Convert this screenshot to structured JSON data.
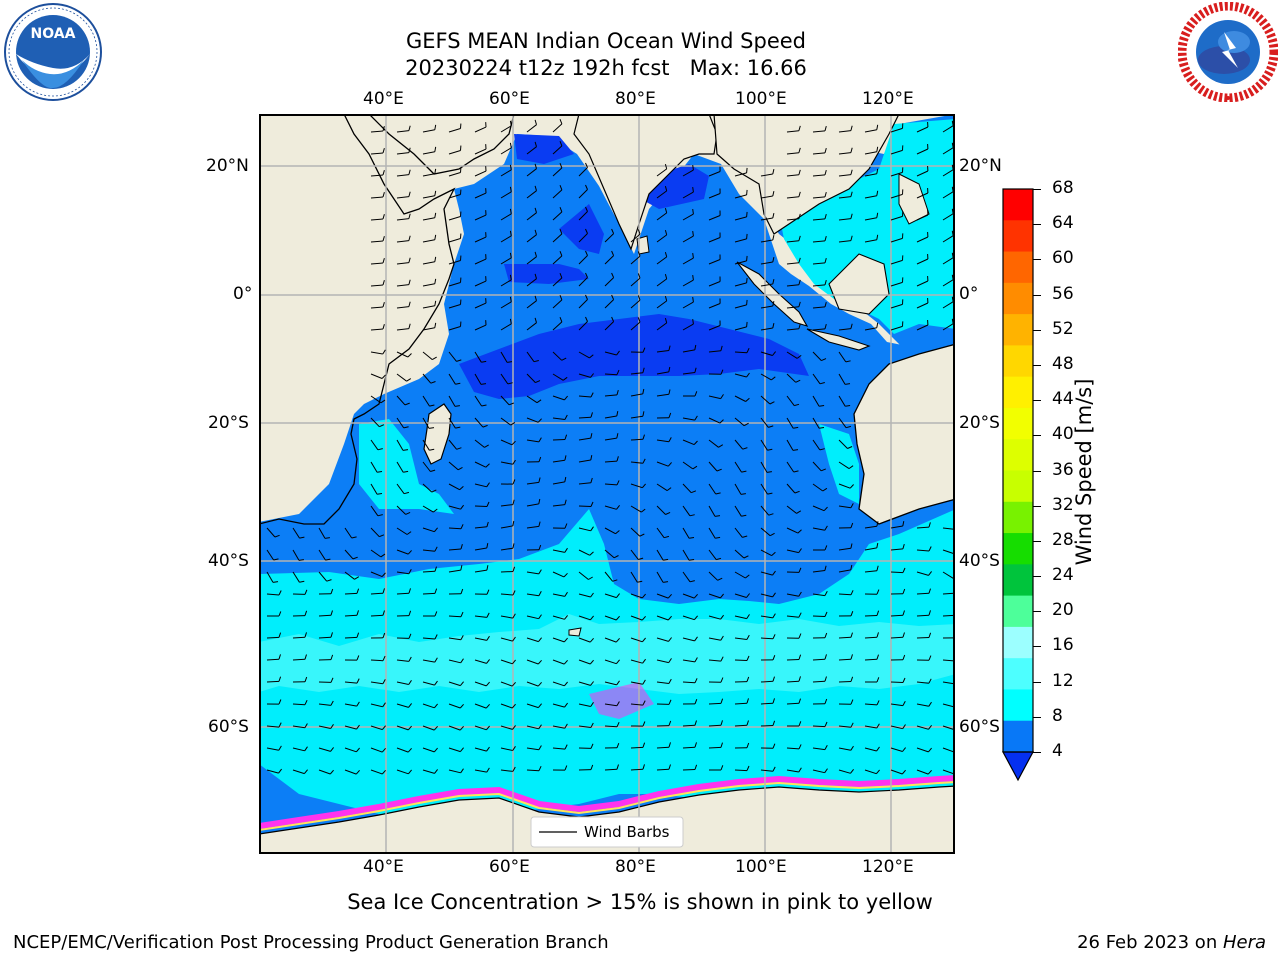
{
  "title": {
    "line1": "GEFS MEAN Indian Ocean Wind Speed",
    "line2": "20230224 t12z 192h fcst   Max: 16.66"
  },
  "logos": {
    "noaa_text": "NOAA",
    "noaa_ring": "NATIONAL OCEANIC AND ATMOSPHERIC ADMINISTRATION · U.S. DEPARTMENT OF COMMERCE",
    "nws_ring": "NATIONAL WEATHER SERVICE"
  },
  "map": {
    "lon_ticks": [
      "40°E",
      "60°E",
      "80°E",
      "100°E",
      "120°E"
    ],
    "lat_ticks_left": [
      "20°N",
      "0°",
      "20°S",
      "40°S",
      "60°S"
    ],
    "lat_ticks_right": [
      "20°N",
      "0°",
      "20°S",
      "40°S",
      "60°S"
    ],
    "legend_label": "Wind Barbs",
    "colors": {
      "land": "#efecdc",
      "ocean_4_8": "#0c7ef6",
      "ocean_lt4": "#0a3cf2",
      "ocean_8_12": "#00eefc",
      "ocean_12_16": "#3ef6fb",
      "sea_ice": "#ff33ee",
      "grid": "#b4b4b4"
    }
  },
  "colorbar": {
    "label": "Wind Speed [m/s]",
    "ticks": [
      "68",
      "64",
      "60",
      "56",
      "52",
      "48",
      "44",
      "40",
      "36",
      "32",
      "28",
      "24",
      "20",
      "16",
      "12",
      "8",
      "4"
    ],
    "colors": [
      "#ff0000",
      "#ff3300",
      "#ff6600",
      "#ff8c00",
      "#ffb300",
      "#ffd700",
      "#fff000",
      "#f2ff00",
      "#ddff00",
      "#c8ff00",
      "#78f200",
      "#16dd00",
      "#00c43c",
      "#4dff9a",
      "#9cffff",
      "#4dffff",
      "#00ffff",
      "#0878f7"
    ],
    "under_color": "#0530f0"
  },
  "caption": "Sea Ice Concentration > 15% is shown in pink to yellow",
  "footer": {
    "left": "NCEP/EMC/Verification Post Processing Product Generation Branch",
    "right_prefix": "26 Feb 2023 on ",
    "right_machine": "Hera"
  }
}
